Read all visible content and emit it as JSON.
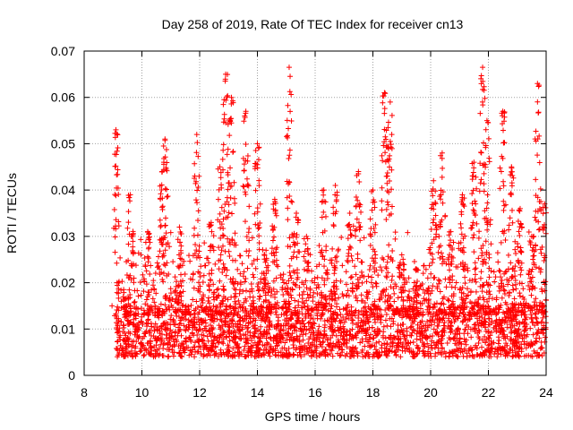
{
  "chart_data": {
    "type": "scatter",
    "title": "Day 258 of 2019, Rate Of TEC Index for receiver cn13",
    "xlabel": "GPS time / hours",
    "ylabel": "ROTI / TECUs",
    "xlim": [
      8,
      24
    ],
    "ylim": [
      0,
      0.07
    ],
    "x_ticks": [
      8,
      10,
      12,
      14,
      16,
      18,
      20,
      22,
      24
    ],
    "x_tick_labels": [
      "8",
      "10",
      "12",
      "14",
      "16",
      "18",
      "20",
      "22",
      "24"
    ],
    "y_ticks": [
      0,
      0.01,
      0.02,
      0.03,
      0.04,
      0.05,
      0.06,
      0.07
    ],
    "y_tick_labels": [
      "0",
      "0.01",
      "0.02",
      "0.03",
      "0.04",
      "0.05",
      "0.06",
      "0.07"
    ],
    "grid": true,
    "marker": "plus",
    "color": "#ff0000",
    "data_start_hour": 9.1,
    "data_end_hour": 24.0,
    "gap": [
      11.55,
      11.6
    ],
    "baseline_range": [
      0.004,
      0.015
    ],
    "peaks": [
      {
        "x": 9.1,
        "y": 0.053
      },
      {
        "x": 9.6,
        "y": 0.039
      },
      {
        "x": 10.2,
        "y": 0.031
      },
      {
        "x": 10.7,
        "y": 0.044
      },
      {
        "x": 10.8,
        "y": 0.051
      },
      {
        "x": 11.3,
        "y": 0.032
      },
      {
        "x": 11.9,
        "y": 0.052
      },
      {
        "x": 12.4,
        "y": 0.033
      },
      {
        "x": 12.7,
        "y": 0.045
      },
      {
        "x": 12.9,
        "y": 0.065
      },
      {
        "x": 13.1,
        "y": 0.06
      },
      {
        "x": 13.6,
        "y": 0.057
      },
      {
        "x": 14.0,
        "y": 0.05
      },
      {
        "x": 14.3,
        "y": 0.027
      },
      {
        "x": 14.6,
        "y": 0.038
      },
      {
        "x": 15.1,
        "y": 0.0665
      },
      {
        "x": 15.35,
        "y": 0.035
      },
      {
        "x": 15.7,
        "y": 0.03
      },
      {
        "x": 16.3,
        "y": 0.04
      },
      {
        "x": 16.7,
        "y": 0.041
      },
      {
        "x": 17.2,
        "y": 0.035
      },
      {
        "x": 17.5,
        "y": 0.044
      },
      {
        "x": 18.0,
        "y": 0.04
      },
      {
        "x": 18.4,
        "y": 0.061
      },
      {
        "x": 18.6,
        "y": 0.059
      },
      {
        "x": 19.0,
        "y": 0.026
      },
      {
        "x": 19.5,
        "y": 0.023
      },
      {
        "x": 20.1,
        "y": 0.042
      },
      {
        "x": 20.4,
        "y": 0.048
      },
      {
        "x": 20.7,
        "y": 0.031
      },
      {
        "x": 21.1,
        "y": 0.039
      },
      {
        "x": 21.5,
        "y": 0.046
      },
      {
        "x": 21.8,
        "y": 0.0665
      },
      {
        "x": 21.95,
        "y": 0.055
      },
      {
        "x": 22.5,
        "y": 0.057
      },
      {
        "x": 22.8,
        "y": 0.045
      },
      {
        "x": 23.1,
        "y": 0.036
      },
      {
        "x": 23.5,
        "y": 0.03
      },
      {
        "x": 23.7,
        "y": 0.063
      },
      {
        "x": 23.95,
        "y": 0.037
      }
    ]
  }
}
